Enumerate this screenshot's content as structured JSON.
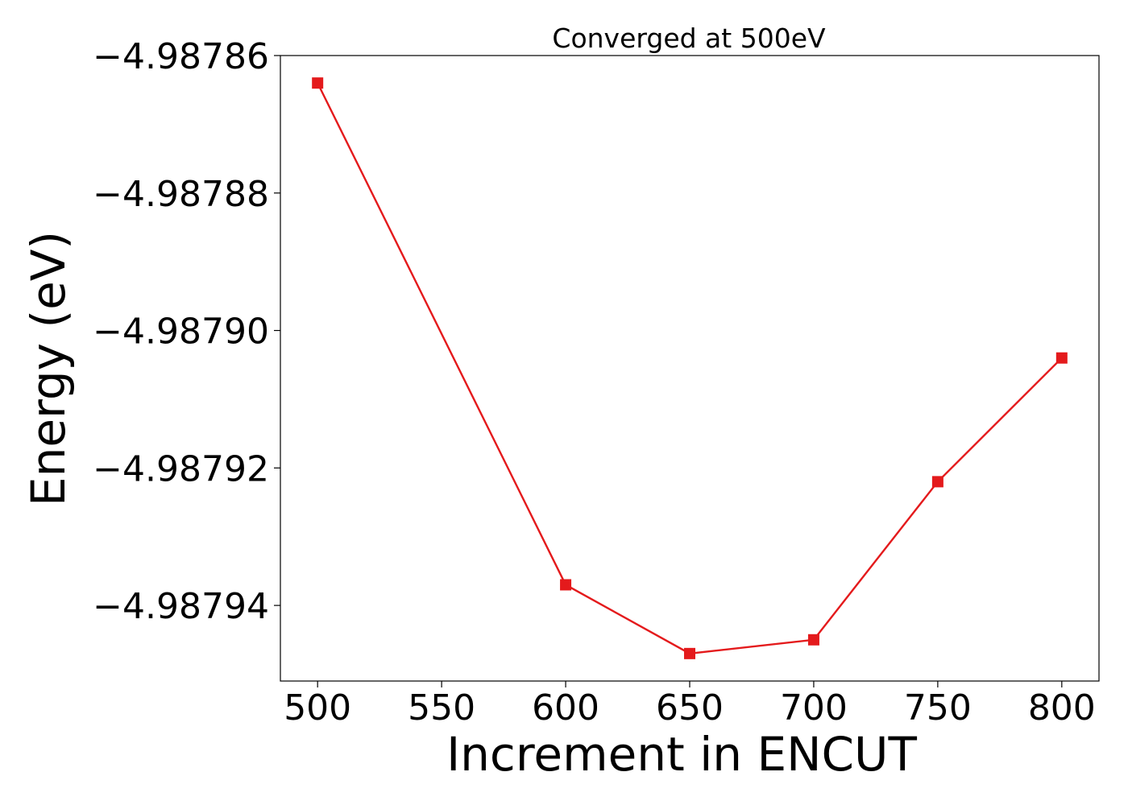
{
  "chart_data": {
    "type": "line",
    "title": "Converged at 500eV",
    "xlabel": "Increment in ENCUT",
    "ylabel": "Energy (eV)",
    "x": [
      500,
      600,
      650,
      700,
      750,
      800
    ],
    "series": [
      {
        "values": [
          -4.987864,
          -4.987937,
          -4.987947,
          -4.987945,
          -4.987922,
          -4.987904
        ],
        "color": "#e41a1c",
        "marker": "square"
      }
    ],
    "xticks": [
      500,
      550,
      600,
      650,
      700,
      750,
      800
    ],
    "xtick_labels": [
      "500",
      "550",
      "600",
      "650",
      "700",
      "750",
      "800"
    ],
    "yticks": [
      -4.98786,
      -4.98788,
      -4.9879,
      -4.98792,
      -4.98794
    ],
    "ytick_labels": [
      "−4.98786",
      "−4.98788",
      "−4.98790",
      "−4.98792",
      "−4.98794"
    ],
    "xlim": [
      485,
      815
    ],
    "ylim": [
      -4.987951,
      -4.98786
    ],
    "grid": false,
    "legend": "none"
  }
}
